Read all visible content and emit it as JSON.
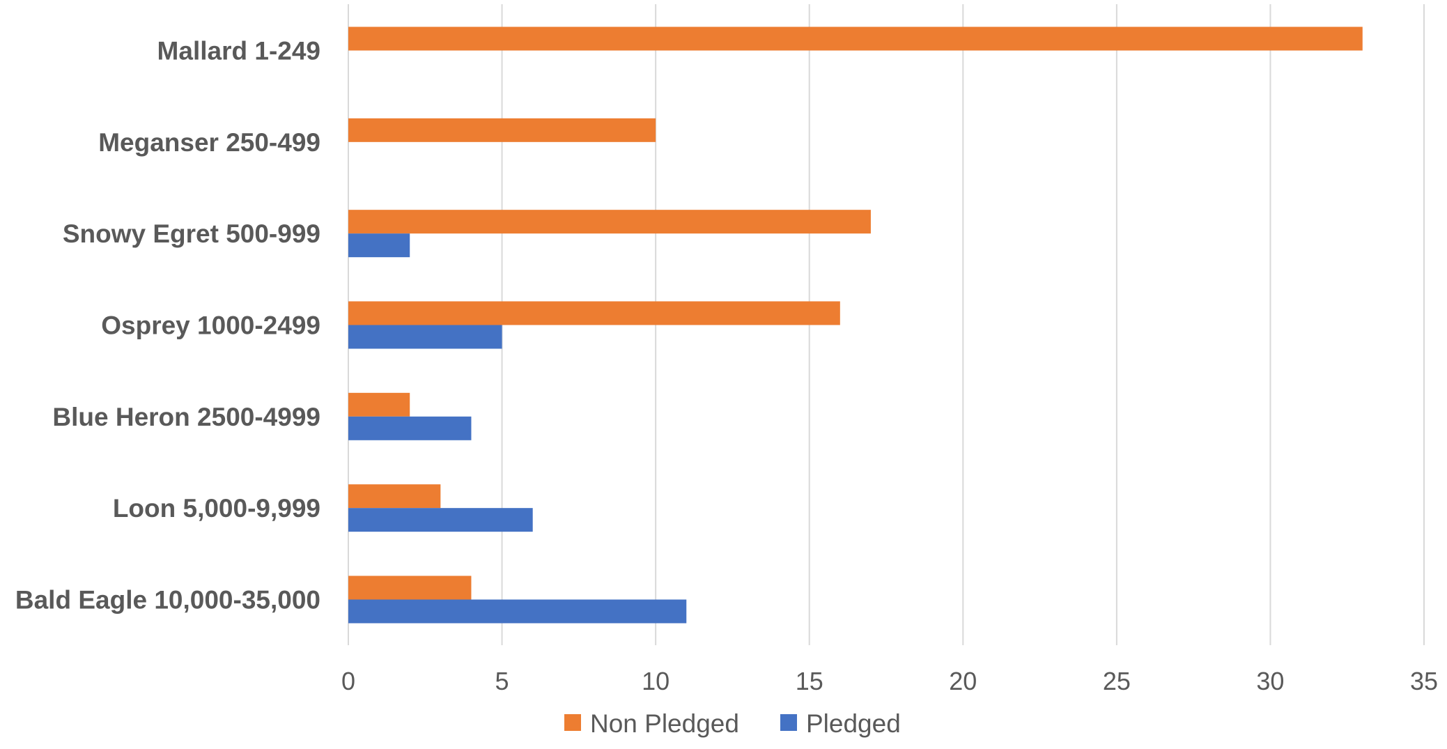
{
  "chart_data": {
    "type": "bar",
    "orientation": "horizontal",
    "title": "",
    "xlabel": "",
    "ylabel": "",
    "categories": [
      "Mallard 1-249",
      "Meganser 250-499",
      "Snowy Egret 500-999",
      "Osprey 1000-2499",
      "Blue Heron 2500-4999",
      "Loon 5,000-9,999",
      "Bald Eagle 10,000-35,000"
    ],
    "series": [
      {
        "name": "Non Pledged",
        "color": "#ed7d31",
        "values": [
          33,
          10,
          17,
          16,
          2,
          3,
          4
        ]
      },
      {
        "name": "Pledged",
        "color": "#4472c4",
        "values": [
          0,
          0,
          2,
          5,
          4,
          6,
          11
        ]
      }
    ],
    "xlim": [
      0,
      35
    ],
    "x_ticks": [
      0,
      5,
      10,
      15,
      20,
      25,
      30,
      35
    ],
    "grid": "vertical major gridlines",
    "legend_position": "bottom"
  }
}
